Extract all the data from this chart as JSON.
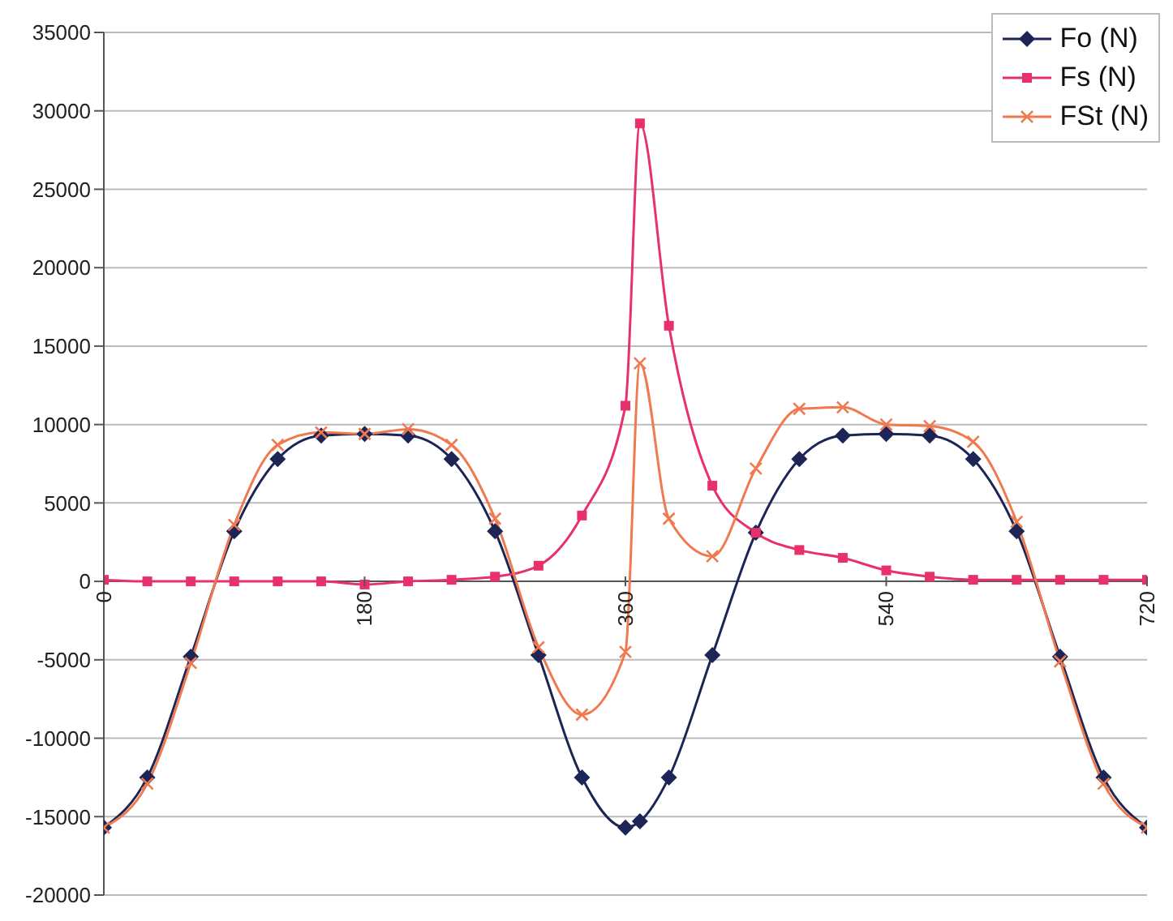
{
  "chart_data": {
    "type": "line",
    "x": [
      0,
      30,
      60,
      90,
      120,
      150,
      180,
      210,
      240,
      270,
      300,
      330,
      360,
      370,
      390,
      420,
      450,
      480,
      510,
      540,
      570,
      600,
      630,
      660,
      690,
      720
    ],
    "series": [
      {
        "name": "Fo (N)",
        "color": "#1c2555",
        "marker": "diamond",
        "values": [
          -15700,
          -12500,
          -4800,
          3200,
          7800,
          9300,
          9400,
          9300,
          7800,
          3200,
          -4700,
          -12500,
          -15700,
          -15300,
          -12500,
          -4700,
          3100,
          7800,
          9300,
          9400,
          9300,
          7800,
          3200,
          -4800,
          -12500,
          -15700
        ]
      },
      {
        "name": "Fs (N)",
        "color": "#e8306a",
        "marker": "square",
        "values": [
          100,
          0,
          0,
          0,
          0,
          0,
          -200,
          0,
          100,
          300,
          1000,
          4200,
          11200,
          29200,
          16300,
          6100,
          3100,
          2000,
          1500,
          700,
          300,
          100,
          100,
          100,
          100,
          100
        ]
      },
      {
        "name": "FSt (N)",
        "color": "#f07a50",
        "marker": "cross",
        "values": [
          -15700,
          -12900,
          -5200,
          3600,
          8700,
          9500,
          9400,
          9700,
          8700,
          4000,
          -4200,
          -8500,
          -4500,
          13900,
          4000,
          1600,
          7200,
          11000,
          11100,
          10000,
          9900,
          8900,
          3800,
          -5100,
          -12900,
          -15700
        ]
      }
    ],
    "xlim": [
      0,
      720
    ],
    "xticks": [
      0,
      180,
      360,
      540,
      720
    ],
    "ylim": [
      -20000,
      35000
    ],
    "yticks": [
      -20000,
      -15000,
      -10000,
      -5000,
      0,
      5000,
      10000,
      15000,
      20000,
      25000,
      30000,
      35000
    ],
    "grid": "y",
    "legend": "top right",
    "line_style": "solid"
  }
}
